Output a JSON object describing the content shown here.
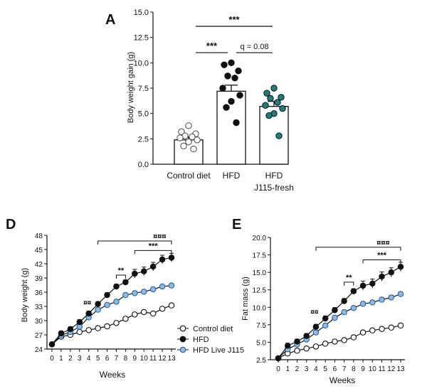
{
  "chart_data": [
    {
      "panel_label": "A",
      "type": "bar",
      "ylabel": "Body weight gain (g)",
      "ylim": [
        0,
        15
      ],
      "yticks": [
        "0.0",
        "2.5",
        "5.0",
        "7.5",
        "10.0",
        "12.5",
        "15.0"
      ],
      "categories": [
        "Control diet",
        "HFD",
        "HFD"
      ],
      "category_sublabels": [
        "",
        "",
        "J115-fresh"
      ],
      "means": [
        2.4,
        7.2,
        5.7
      ],
      "errors": [
        0.3,
        0.6,
        0.5
      ],
      "points": [
        [
          3.8,
          3.2,
          3.0,
          2.8,
          2.7,
          2.6,
          2.4,
          2.2,
          1.8,
          1.5
        ],
        [
          10.0,
          9.8,
          9.2,
          8.7,
          8.5,
          7.5,
          6.8,
          6.2,
          5.6,
          4.1
        ],
        [
          7.5,
          7.0,
          6.6,
          6.5,
          6.1,
          5.8,
          5.5,
          5.0,
          4.8,
          2.8
        ]
      ],
      "colors": {
        "control": "#ffffff",
        "hfd": "#111111",
        "j115": "#1e7f7a"
      },
      "annotations": [
        {
          "from": 0,
          "to": 2,
          "text": "***",
          "y": 13.6
        },
        {
          "from": 0,
          "to": 1,
          "text": "***",
          "y": 11.0
        },
        {
          "from": 1,
          "to": 2,
          "text": "q = 0.08",
          "y": 11.0
        }
      ]
    },
    {
      "panel_label": "D",
      "type": "line",
      "xlabel": "Weeks",
      "ylabel": "Body weight (g)",
      "x": [
        0,
        1,
        2,
        3,
        4,
        5,
        6,
        7,
        8,
        9,
        10,
        11,
        12,
        13
      ],
      "xlim": [
        0,
        13
      ],
      "ylim": [
        24,
        48
      ],
      "yticks": [
        24,
        27,
        30,
        33,
        36,
        39,
        42,
        45,
        48
      ],
      "series": [
        {
          "name": "Control diet",
          "color": "#ffffff",
          "values": [
            25.0,
            26.6,
            27.0,
            27.6,
            28.0,
            28.4,
            28.8,
            29.5,
            30.4,
            31.3,
            31.8,
            31.5,
            32.5,
            33.2
          ]
        },
        {
          "name": "HFD",
          "color": "#111111",
          "values": [
            25.0,
            27.3,
            28.2,
            29.7,
            31.5,
            33.5,
            35.4,
            37.2,
            38.1,
            39.9,
            40.4,
            41.4,
            42.9,
            43.3
          ]
        },
        {
          "name": "HFD Live J115",
          "color": "#8cbbe5",
          "values": [
            25.0,
            26.9,
            27.6,
            28.7,
            30.7,
            32.3,
            33.3,
            34.0,
            35.4,
            35.8,
            36.1,
            36.6,
            37.2,
            37.4
          ]
        }
      ],
      "annotations": [
        {
          "kind": "bracket",
          "from": 5,
          "to": 13,
          "text": "¤¤¤",
          "y": 46.8
        },
        {
          "kind": "bracket",
          "from": 9,
          "to": 13,
          "text": "***",
          "y": 44.8
        },
        {
          "kind": "bracket",
          "from": 7,
          "to": 8,
          "text": "**",
          "y": 39.6
        },
        {
          "kind": "label",
          "x": 4,
          "text": "¤¤",
          "y": 33.3
        }
      ]
    },
    {
      "panel_label": "E",
      "type": "line",
      "xlabel": "Weeks",
      "ylabel": "Fat mass (g)",
      "x": [
        0,
        1,
        2,
        3,
        4,
        5,
        6,
        7,
        8,
        9,
        10,
        11,
        12,
        13
      ],
      "xlim": [
        0,
        13
      ],
      "ylim": [
        2.5,
        20
      ],
      "yticks": [
        "2.5",
        "5.0",
        "7.5",
        "10.0",
        "12.5",
        "15.0",
        "17.5",
        "20.0"
      ],
      "series": [
        {
          "name": "Control diet",
          "color": "#ffffff",
          "values": [
            2.7,
            3.4,
            3.8,
            4.1,
            4.4,
            4.8,
            5.1,
            5.3,
            5.7,
            6.4,
            6.7,
            6.9,
            7.1,
            7.4
          ]
        },
        {
          "name": "HFD",
          "color": "#111111",
          "values": [
            2.7,
            4.5,
            5.1,
            5.9,
            7.2,
            8.4,
            9.6,
            10.9,
            12.3,
            13.1,
            13.4,
            14.4,
            15.0,
            15.8
          ]
        },
        {
          "name": "HFD Live J115",
          "color": "#8cbbe5",
          "values": [
            2.7,
            4.0,
            4.7,
            5.4,
            6.4,
            7.4,
            8.5,
            9.3,
            9.9,
            10.5,
            10.7,
            11.1,
            11.4,
            11.9
          ]
        }
      ],
      "annotations": [
        {
          "kind": "bracket",
          "from": 4,
          "to": 13,
          "text": "¤¤¤",
          "y": 18.6
        },
        {
          "kind": "bracket",
          "from": 9,
          "to": 13,
          "text": "***",
          "y": 16.8
        },
        {
          "kind": "bracket",
          "from": 7,
          "to": 8,
          "text": "**",
          "y": 13.6
        },
        {
          "kind": "label",
          "x": 4,
          "text": "¤¤",
          "y": 9.0
        }
      ]
    }
  ]
}
